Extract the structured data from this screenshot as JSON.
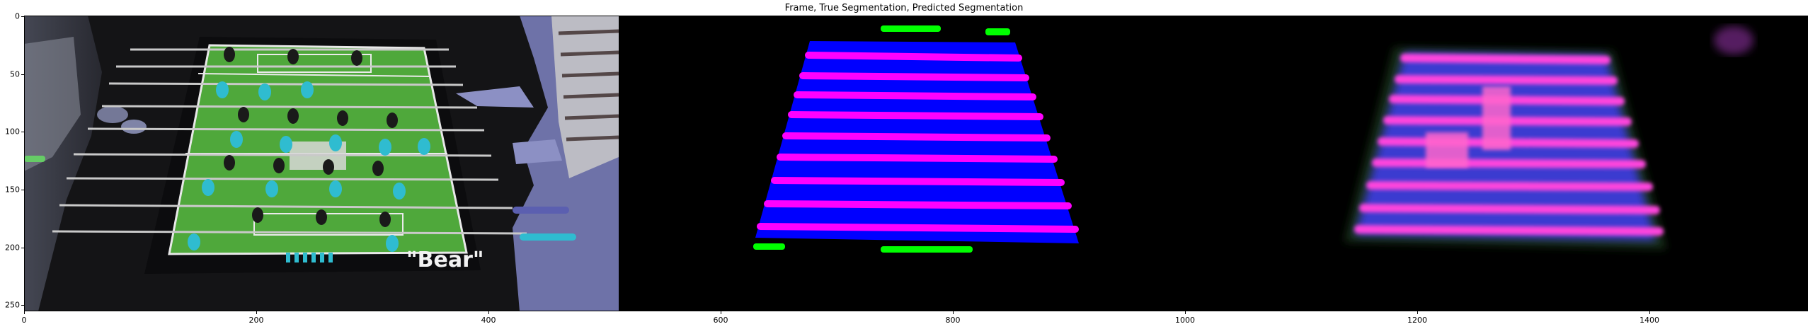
{
  "figure": {
    "title": "Frame, True Segmentation, Predicted Segmentation"
  },
  "panels": {
    "frame": {
      "table_label": "\"Bear\""
    }
  },
  "x_axis": {
    "ticks": [
      "0",
      "200",
      "400",
      "600",
      "800",
      "1000",
      "1200",
      "1400"
    ],
    "tick_values": [
      0,
      200,
      400,
      600,
      800,
      1000,
      1200,
      1400
    ],
    "max": 1536
  },
  "y_axis": {
    "ticks": [
      "0",
      "50",
      "100",
      "150",
      "200",
      "250"
    ],
    "tick_values": [
      0,
      50,
      100,
      150,
      200,
      250
    ],
    "max": 256
  },
  "colors": {
    "field": "#4fa83b",
    "table_body": "#0000ff",
    "rods": "#ff00ff",
    "players": "#00ff00",
    "background": "#000000"
  }
}
